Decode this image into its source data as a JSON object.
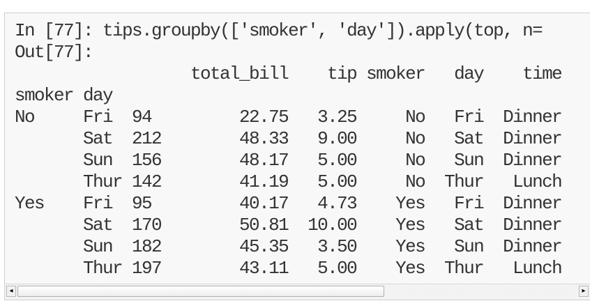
{
  "cell": {
    "lines": [
      "In [77]: tips.groupby(['smoker', 'day']).apply(top, n=",
      "Out[77]:",
      "                  total_bill    tip smoker   day    time",
      "smoker day",
      "No     Fri  94         22.75   3.25     No   Fri  Dinner",
      "       Sat  212        48.33   9.00     No   Sat  Dinner",
      "       Sun  156        48.17   5.00     No   Sun  Dinner",
      "       Thur 142        41.19   5.00     No  Thur   Lunch",
      "Yes    Fri  95         40.17   4.73    Yes   Fri  Dinner",
      "       Sat  170        50.81  10.00    Yes   Sat  Dinner",
      "       Sun  182        45.35   3.50    Yes   Sun  Dinner",
      "       Thur 197        43.11   5.00    Yes  Thur   Lunch"
    ]
  },
  "scrollbar": {
    "left_arrow": "◂",
    "right_arrow": "▸"
  }
}
